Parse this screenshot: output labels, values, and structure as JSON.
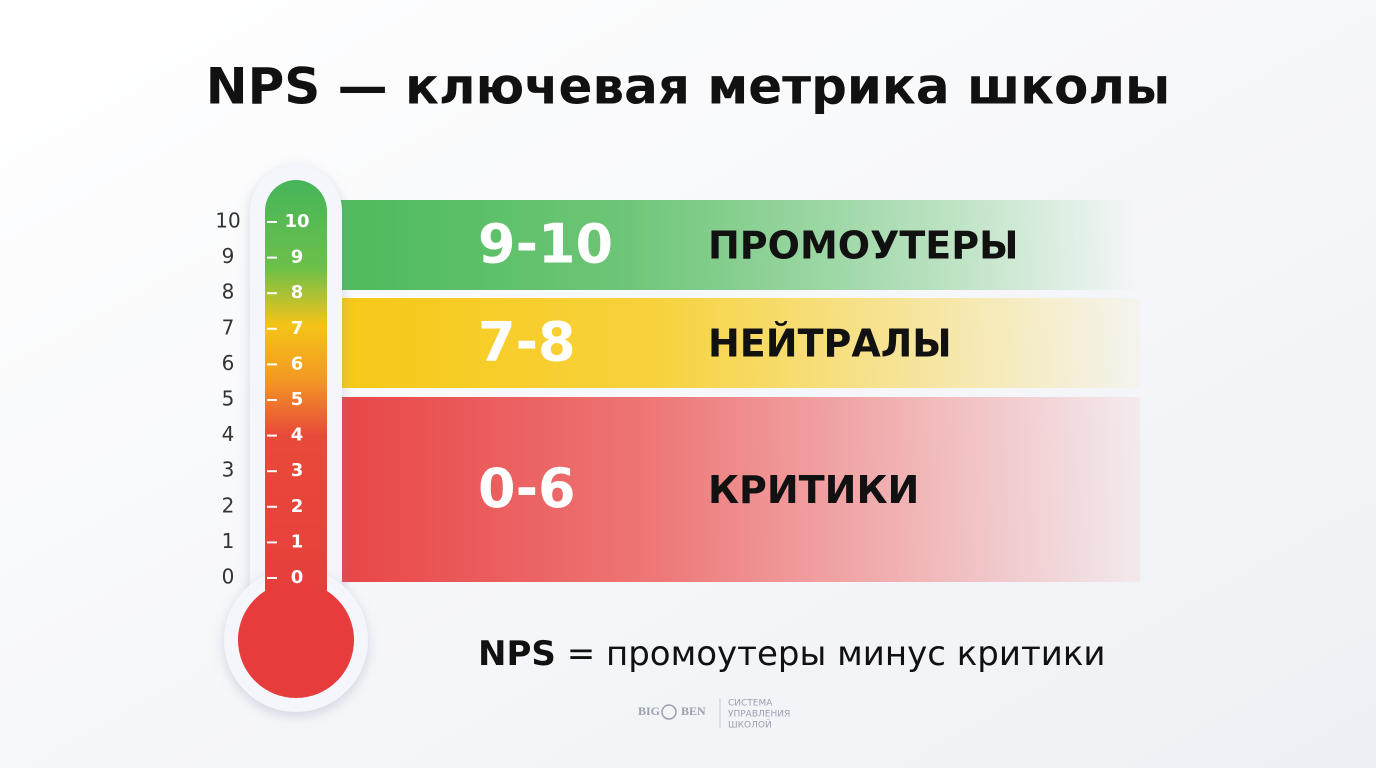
{
  "header": {
    "title": "NPS — ключевая метрика школы"
  },
  "outer_scale": [
    0,
    1,
    2,
    3,
    4,
    5,
    6,
    7,
    8,
    9,
    10
  ],
  "inner_scale": [
    0,
    1,
    2,
    3,
    4,
    5,
    6,
    7,
    8,
    9,
    10
  ],
  "bands": [
    {
      "range": "9-10",
      "label": "ПРОМОУТЕРЫ"
    },
    {
      "range": "7-8",
      "label": "НЕЙТРАЛЫ"
    },
    {
      "range": "0-6",
      "label": "КРИТИКИ"
    }
  ],
  "formula": {
    "term": "NPS",
    "text": "= промоутеры минус критики"
  },
  "logo": {
    "left": "BIG",
    "right": "BEN",
    "lines": [
      "СИСТЕМА",
      "УПРАВЛЕНИЯ",
      "ШКОЛОЙ"
    ]
  }
}
